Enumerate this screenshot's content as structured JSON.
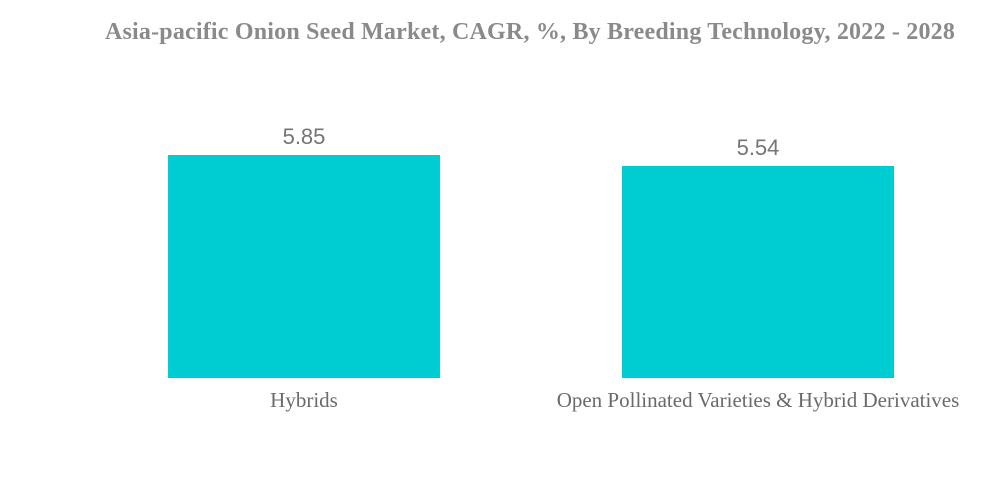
{
  "page": {
    "background_color": "#ffffff"
  },
  "chart_data": {
    "type": "bar",
    "title": "Asia-pacific Onion Seed Market, CAGR, %, By Breeding Technology, 2022 - 2028",
    "categories": [
      "Hybrids",
      "Open Pollinated Varieties & Hybrid Derivatives"
    ],
    "values": [
      5.85,
      5.54
    ],
    "value_labels": [
      "5.85",
      "5.54"
    ],
    "ylabel": "CAGR, %",
    "xlabel": "",
    "ylim": [
      0,
      5.85
    ],
    "grid": false,
    "legend": false,
    "axes_visible": false,
    "bar_color": "#00CDD1",
    "title_color": "#8a8a8a",
    "value_color": "#757575",
    "label_color": "#6a6a6a"
  }
}
